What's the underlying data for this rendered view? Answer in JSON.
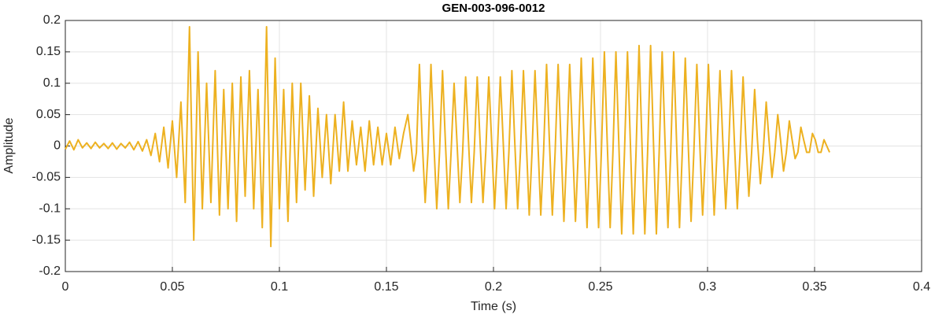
{
  "chart_data": {
    "type": "line",
    "title": "GEN-003-096-0012",
    "x_label": "Time (s)",
    "y_label": "Amplitude",
    "xlim": [
      0,
      0.4
    ],
    "xticks": [
      0,
      0.05,
      0.1,
      0.15,
      0.2,
      0.25,
      0.3,
      0.35,
      0.4
    ],
    "ylim": [
      -0.2,
      0.2
    ],
    "yticks": [
      -0.2,
      -0.15,
      -0.1,
      -0.05,
      0,
      0.05,
      0.1,
      0.15,
      0.2
    ],
    "grid": true,
    "x": [
      0,
      0.002,
      0.004,
      0.006,
      0.008,
      0.01,
      0.012,
      0.014,
      0.016,
      0.018,
      0.02,
      0.022,
      0.024,
      0.026,
      0.028,
      0.03,
      0.032,
      0.034,
      0.036,
      0.038,
      0.04,
      0.042,
      0.044,
      0.046,
      0.048,
      0.05,
      0.052,
      0.054,
      0.056,
      0.058,
      0.06,
      0.062,
      0.064,
      0.066,
      0.068,
      0.07,
      0.072,
      0.074,
      0.076,
      0.078,
      0.08,
      0.082,
      0.084,
      0.086,
      0.088,
      0.09,
      0.092,
      0.094,
      0.096,
      0.098,
      0.1,
      0.102,
      0.104,
      0.106,
      0.108,
      0.11,
      0.112,
      0.114,
      0.116,
      0.118,
      0.12,
      0.122,
      0.124,
      0.126,
      0.128,
      0.13,
      0.132,
      0.134,
      0.136,
      0.138,
      0.14,
      0.142,
      0.144,
      0.146,
      0.148,
      0.15,
      0.152,
      0.154,
      0.156,
      0.158,
      0.16,
      0.1613,
      0.1627,
      0.164,
      0.1654,
      0.1667,
      0.1681,
      0.1694,
      0.1708,
      0.1721,
      0.1735,
      0.1748,
      0.1762,
      0.1775,
      0.1789,
      0.1802,
      0.1816,
      0.1829,
      0.1843,
      0.1856,
      0.187,
      0.1883,
      0.1897,
      0.191,
      0.1924,
      0.1937,
      0.1951,
      0.1964,
      0.1978,
      0.1991,
      0.2005,
      0.2018,
      0.2032,
      0.2045,
      0.2059,
      0.2072,
      0.2086,
      0.2099,
      0.2113,
      0.2126,
      0.214,
      0.2153,
      0.2167,
      0.218,
      0.2194,
      0.2207,
      0.2221,
      0.2234,
      0.2248,
      0.2261,
      0.2275,
      0.2288,
      0.2302,
      0.2315,
      0.2329,
      0.2342,
      0.2356,
      0.2369,
      0.2383,
      0.2396,
      0.241,
      0.2423,
      0.2437,
      0.245,
      0.2464,
      0.2477,
      0.2491,
      0.2504,
      0.2518,
      0.2531,
      0.2545,
      0.2558,
      0.2572,
      0.2585,
      0.2599,
      0.2612,
      0.2626,
      0.2639,
      0.2653,
      0.2666,
      0.268,
      0.2693,
      0.2707,
      0.272,
      0.2734,
      0.2747,
      0.2761,
      0.2774,
      0.2788,
      0.2801,
      0.2815,
      0.2828,
      0.2842,
      0.2855,
      0.2869,
      0.2882,
      0.2896,
      0.2909,
      0.2923,
      0.2936,
      0.295,
      0.2963,
      0.2977,
      0.299,
      0.3004,
      0.3017,
      0.3031,
      0.3044,
      0.3058,
      0.3071,
      0.3085,
      0.3098,
      0.3112,
      0.3125,
      0.3139,
      0.3152,
      0.3166,
      0.3179,
      0.3193,
      0.3206,
      0.322,
      0.3233,
      0.3247,
      0.326,
      0.3274,
      0.3287,
      0.3301,
      0.3314,
      0.3328,
      0.3341,
      0.3355,
      0.3368,
      0.3382,
      0.3395,
      0.3409,
      0.3422,
      0.3436,
      0.3449,
      0.3463,
      0.3476,
      0.349,
      0.3503,
      0.3517,
      0.353,
      0.3544,
      0.3557,
      0.357
    ],
    "series": [
      {
        "color": "#edb120",
        "values": [
          -0.005,
          0.008,
          -0.006,
          0.01,
          -0.003,
          0.005,
          -0.004,
          0.006,
          -0.003,
          0.004,
          -0.004,
          0.005,
          -0.005,
          0.004,
          -0.003,
          0.006,
          -0.006,
          0.007,
          -0.008,
          0.01,
          -0.015,
          0.02,
          -0.025,
          0.03,
          -0.035,
          0.04,
          -0.05,
          0.07,
          -0.09,
          0.19,
          -0.15,
          0.15,
          -0.1,
          0.1,
          -0.09,
          0.12,
          -0.11,
          0.09,
          -0.1,
          0.1,
          -0.12,
          0.11,
          -0.08,
          0.12,
          -0.1,
          0.09,
          -0.13,
          0.19,
          -0.16,
          0.14,
          -0.1,
          0.09,
          -0.12,
          0.1,
          -0.09,
          0.1,
          -0.07,
          0.08,
          -0.08,
          0.06,
          -0.05,
          0.05,
          -0.06,
          0.05,
          -0.04,
          0.07,
          -0.04,
          0.04,
          -0.03,
          0.03,
          -0.04,
          0.04,
          -0.03,
          0.03,
          -0.03,
          0.02,
          -0.03,
          0.03,
          -0.02,
          0.02,
          0.05,
          0.01,
          -0.04,
          -0.01,
          0.13,
          0.01,
          -0.09,
          -0.01,
          0.13,
          0.01,
          -0.1,
          -0.01,
          0.12,
          0.01,
          -0.1,
          -0.01,
          0.1,
          0.01,
          -0.09,
          -0.01,
          0.11,
          0.01,
          -0.09,
          -0.01,
          0.11,
          0.01,
          -0.09,
          -0.01,
          0.11,
          0.01,
          -0.1,
          -0.01,
          0.11,
          0.01,
          -0.1,
          -0.01,
          0.12,
          0.01,
          -0.1,
          -0.01,
          0.12,
          0.01,
          -0.11,
          -0.01,
          0.12,
          0.01,
          -0.11,
          -0.01,
          0.13,
          0.01,
          -0.11,
          -0.01,
          0.13,
          0.01,
          -0.12,
          -0.01,
          0.13,
          0.01,
          -0.12,
          -0.01,
          0.14,
          0.01,
          -0.13,
          -0.01,
          0.14,
          0.01,
          -0.13,
          -0.01,
          0.15,
          0.01,
          -0.13,
          -0.01,
          0.15,
          0.01,
          -0.14,
          -0.01,
          0.15,
          0.01,
          -0.14,
          -0.01,
          0.16,
          0.01,
          -0.14,
          -0.01,
          0.16,
          0.01,
          -0.14,
          -0.01,
          0.15,
          0.01,
          -0.13,
          -0.01,
          0.15,
          0.01,
          -0.13,
          -0.01,
          0.14,
          0.01,
          -0.12,
          -0.01,
          0.13,
          0.01,
          -0.11,
          -0.01,
          0.13,
          0.01,
          -0.11,
          -0.01,
          0.12,
          0.01,
          -0.1,
          -0.01,
          0.12,
          0.01,
          -0.1,
          -0.01,
          0.11,
          0.01,
          -0.08,
          -0.01,
          0.09,
          0.01,
          -0.06,
          -0.01,
          0.07,
          0.01,
          -0.05,
          -0.01,
          0.05,
          0.01,
          -0.04,
          -0.01,
          0.04,
          0.01,
          -0.02,
          -0.01,
          0.03,
          0.01,
          -0.01,
          -0.01,
          0.02,
          0.01,
          -0.01,
          -0.01,
          0.01,
          0,
          -0.01
        ]
      }
    ]
  }
}
